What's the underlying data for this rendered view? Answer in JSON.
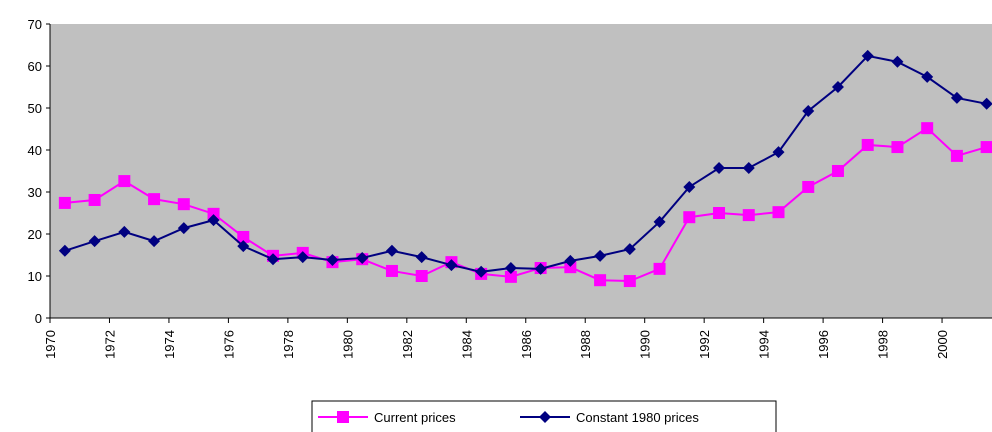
{
  "chart_data": {
    "type": "line",
    "x": [
      1970.5,
      1971.5,
      1972.5,
      1973.5,
      1974.5,
      1975.5,
      1976.5,
      1977.5,
      1978.5,
      1979.5,
      1980.5,
      1981.5,
      1982.5,
      1983.5,
      1984.5,
      1985.5,
      1986.5,
      1987.5,
      1988.5,
      1989.5,
      1990.5,
      1991.5,
      1992.5,
      1993.5,
      1994.5,
      1995.5,
      1996.5,
      1997.5,
      1998.5,
      1999.5,
      2000.5,
      2001.5
    ],
    "series": [
      {
        "name": "Current prices",
        "color": "#ff00ff",
        "marker": "square",
        "values": [
          27.4,
          28.1,
          32.6,
          28.3,
          27.1,
          24.8,
          19.3,
          14.8,
          15.5,
          13.3,
          14.0,
          11.2,
          10.0,
          13.3,
          10.5,
          9.8,
          11.9,
          12.1,
          9.0,
          8.8,
          11.7,
          24.0,
          25.0,
          24.5,
          25.2,
          31.2,
          35.0,
          41.2,
          40.7,
          45.2,
          38.6,
          40.7
        ]
      },
      {
        "name": "Constant 1980 prices",
        "color": "#000080",
        "marker": "diamond",
        "values": [
          16.0,
          18.3,
          20.5,
          18.3,
          21.4,
          23.3,
          17.1,
          14.0,
          14.5,
          13.8,
          14.3,
          16.0,
          14.5,
          12.6,
          11.0,
          11.9,
          11.7,
          13.6,
          14.8,
          16.4,
          22.9,
          31.2,
          35.7,
          35.7,
          39.5,
          49.3,
          55.0,
          62.4,
          61.0,
          57.4,
          52.4,
          51.0
        ]
      }
    ],
    "xlim": [
      1970,
      2001.68
    ],
    "xticks": [
      1970,
      1972,
      1974,
      1976,
      1978,
      1980,
      1982,
      1984,
      1986,
      1988,
      1990,
      1992,
      1994,
      1996,
      1998,
      2000
    ],
    "ylim": [
      0,
      70
    ],
    "yticks": [
      0,
      10,
      20,
      30,
      40,
      50,
      60,
      70
    ],
    "legend": "bottom"
  }
}
